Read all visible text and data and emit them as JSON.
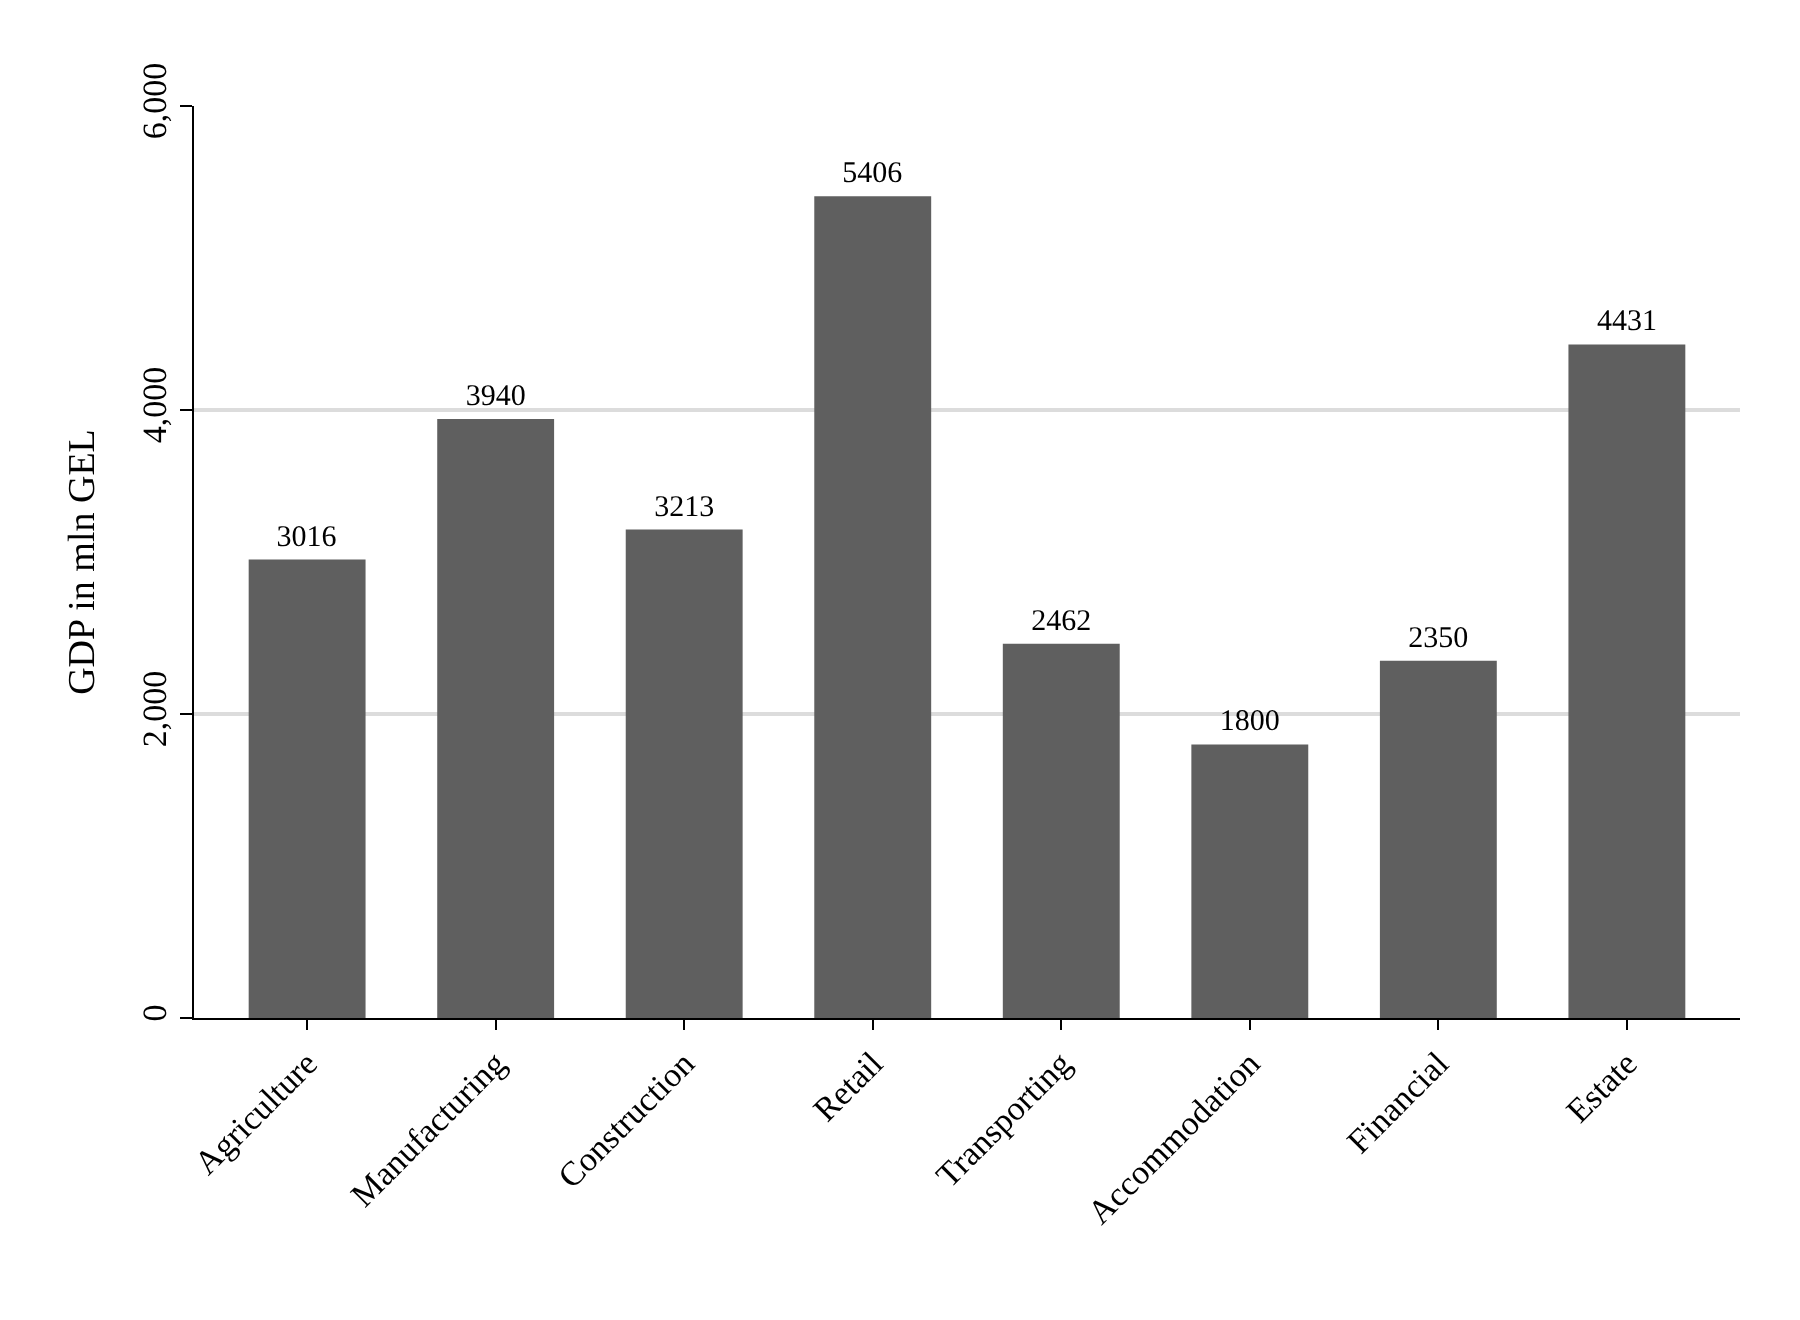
{
  "chart_data": {
    "type": "bar",
    "ylabel": "GDP in mln GEL",
    "categories": [
      "Agriculture",
      "Manufacturing",
      "Construction",
      "Retail",
      "Transporting",
      "Accommodation",
      "Financial",
      "Estate"
    ],
    "values": [
      3016,
      3940,
      3213,
      5406,
      2462,
      1800,
      2350,
      4431
    ],
    "color": "#5f5f5f",
    "ylim": [
      0,
      6000
    ],
    "yticks": [
      0,
      {
        "value": 2000,
        "label": "2,000"
      },
      {
        "value": 4000,
        "label": "4,000"
      },
      {
        "value": 6000,
        "label": "6,000"
      }
    ],
    "grid": "y",
    "data_labels": true
  }
}
